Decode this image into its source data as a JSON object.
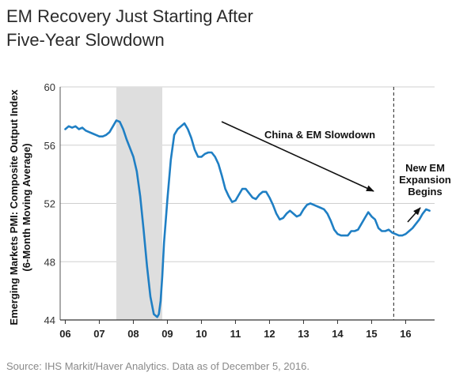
{
  "title_line1": "EM Recovery Just Starting After",
  "title_line2": "Five-Year Slowdown",
  "source": "Source: IHS Markit/Haver Analytics. Data as of December 5, 2016.",
  "chart_data": {
    "type": "line",
    "ylabel_line1": "Emerging Markets PMI: Composite Output Index",
    "ylabel_line2": "(6-Month Moving Average)",
    "ylim": [
      44,
      60
    ],
    "xlim": [
      2005.85,
      2016.85
    ],
    "yticks": [
      44,
      48,
      52,
      56,
      60
    ],
    "yticklabels": [
      "44",
      "48",
      "52",
      "56",
      "60"
    ],
    "xticklabels": [
      "06",
      "07",
      "08",
      "09",
      "10",
      "11",
      "12",
      "13",
      "14",
      "15",
      "16"
    ],
    "xtick_positions": [
      2006.0,
      2007.0,
      2008.0,
      2009.0,
      2010.0,
      2011.0,
      2012.0,
      2013.0,
      2014.0,
      2015.0,
      2016.0
    ],
    "grid": true,
    "line_color": "#1f7fc4",
    "shade_color": "#dedede",
    "recession_shade": [
      2007.5,
      2008.85
    ],
    "vertical_marker": 2015.65,
    "annotations": [
      {
        "text": "China & EM Slowdown"
      },
      {
        "text_lines": [
          "New EM",
          "Expansion",
          "Begins"
        ]
      }
    ],
    "series": [
      {
        "x": [
          2006.0,
          2006.1,
          2006.2,
          2006.3,
          2006.4,
          2006.5,
          2006.6,
          2006.7,
          2006.8,
          2006.9,
          2007.0,
          2007.1,
          2007.2,
          2007.3,
          2007.4,
          2007.5,
          2007.6,
          2007.7,
          2007.8,
          2007.9,
          2008.0,
          2008.1,
          2008.2,
          2008.3,
          2008.4,
          2008.5,
          2008.6,
          2008.7,
          2008.75,
          2008.8,
          2008.85,
          2008.9,
          2009.0,
          2009.1,
          2009.2,
          2009.3,
          2009.4,
          2009.5,
          2009.6,
          2009.7,
          2009.8,
          2009.9,
          2010.0,
          2010.1,
          2010.2,
          2010.3,
          2010.4,
          2010.5,
          2010.6,
          2010.7,
          2010.8,
          2010.9,
          2011.0,
          2011.1,
          2011.2,
          2011.3,
          2011.4,
          2011.5,
          2011.6,
          2011.7,
          2011.8,
          2011.9,
          2012.0,
          2012.1,
          2012.2,
          2012.3,
          2012.4,
          2012.5,
          2012.6,
          2012.7,
          2012.8,
          2012.9,
          2013.0,
          2013.1,
          2013.2,
          2013.3,
          2013.4,
          2013.5,
          2013.6,
          2013.7,
          2013.8,
          2013.9,
          2014.0,
          2014.1,
          2014.2,
          2014.3,
          2014.4,
          2014.5,
          2014.6,
          2014.7,
          2014.8,
          2014.9,
          2015.0,
          2015.1,
          2015.2,
          2015.3,
          2015.4,
          2015.5,
          2015.6,
          2015.7,
          2015.8,
          2015.9,
          2016.0,
          2016.1,
          2016.2,
          2016.3,
          2016.4,
          2016.5,
          2016.6,
          2016.7
        ],
        "values": [
          57.1,
          57.3,
          57.2,
          57.3,
          57.1,
          57.2,
          57.0,
          56.9,
          56.8,
          56.7,
          56.6,
          56.6,
          56.7,
          56.9,
          57.3,
          57.7,
          57.6,
          57.1,
          56.4,
          55.8,
          55.2,
          54.2,
          52.5,
          50.2,
          47.7,
          45.6,
          44.4,
          44.2,
          44.4,
          45.3,
          47.0,
          49.3,
          52.3,
          55.0,
          56.7,
          57.1,
          57.3,
          57.5,
          57.1,
          56.5,
          55.7,
          55.2,
          55.2,
          55.4,
          55.5,
          55.5,
          55.2,
          54.7,
          53.9,
          53.0,
          52.5,
          52.1,
          52.2,
          52.6,
          53.0,
          53.0,
          52.7,
          52.4,
          52.3,
          52.6,
          52.8,
          52.8,
          52.4,
          51.9,
          51.3,
          50.9,
          51.0,
          51.3,
          51.5,
          51.3,
          51.1,
          51.2,
          51.6,
          51.9,
          52.0,
          51.9,
          51.8,
          51.7,
          51.6,
          51.3,
          50.8,
          50.2,
          49.9,
          49.8,
          49.8,
          49.8,
          50.1,
          50.1,
          50.2,
          50.6,
          51.0,
          51.4,
          51.1,
          50.9,
          50.3,
          50.1,
          50.1,
          50.2,
          50.0,
          49.9,
          49.8,
          49.8,
          49.9,
          50.1,
          50.3,
          50.6,
          50.9,
          51.3,
          51.6,
          51.5
        ]
      }
    ]
  }
}
